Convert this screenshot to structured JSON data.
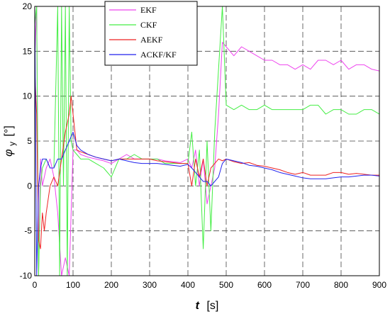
{
  "chart_data": {
    "type": "line",
    "title": "",
    "xlabel_main": "t",
    "xlabel_unit": "[s]",
    "ylabel_main": "φ",
    "ylabel_sub": "y",
    "ylabel_unit": "[°]",
    "xlim": [
      0,
      900
    ],
    "ylim": [
      -10,
      20
    ],
    "x_ticks": [
      0,
      100,
      200,
      300,
      400,
      500,
      600,
      700,
      800,
      900
    ],
    "y_ticks": [
      -10,
      -5,
      0,
      5,
      10,
      15,
      20
    ],
    "grid": true,
    "legend_position": "top-center",
    "series": [
      {
        "name": "EKF",
        "color": "#ee44ee",
        "x": [
          0,
          5,
          10,
          15,
          20,
          30,
          40,
          50,
          60,
          70,
          80,
          90,
          100,
          110,
          120,
          140,
          160,
          180,
          200,
          220,
          240,
          260,
          280,
          300,
          320,
          340,
          360,
          380,
          400,
          410,
          420,
          430,
          440,
          450,
          460,
          470,
          480,
          490,
          500,
          520,
          540,
          560,
          580,
          600,
          620,
          640,
          660,
          680,
          700,
          720,
          740,
          760,
          780,
          800,
          820,
          840,
          860,
          880,
          900
        ],
        "y": [
          14,
          20,
          -10,
          3,
          0,
          2,
          3,
          1,
          -3,
          -10,
          -8,
          -10,
          4,
          4,
          3.5,
          3.2,
          3,
          2.8,
          2.5,
          3,
          3.5,
          3,
          3,
          3,
          3,
          2.8,
          2.7,
          2.6,
          3,
          2,
          4,
          0,
          3,
          -2,
          0,
          2,
          8,
          16,
          15.5,
          14.5,
          15.5,
          15,
          14.5,
          14,
          14,
          13.5,
          13.5,
          13,
          13.5,
          13,
          14,
          14,
          13.5,
          14,
          13,
          13.5,
          13.5,
          13,
          12.8
        ]
      },
      {
        "name": "CKF",
        "color": "#44ee44",
        "x": [
          0,
          5,
          10,
          15,
          20,
          30,
          40,
          50,
          60,
          65,
          70,
          75,
          80,
          85,
          90,
          95,
          100,
          110,
          120,
          140,
          160,
          180,
          200,
          220,
          240,
          260,
          280,
          300,
          320,
          340,
          360,
          380,
          400,
          410,
          420,
          430,
          440,
          450,
          460,
          470,
          480,
          490,
          500,
          520,
          540,
          560,
          580,
          600,
          620,
          640,
          660,
          680,
          700,
          720,
          740,
          760,
          780,
          800,
          820,
          840,
          860,
          880,
          900
        ],
        "y": [
          18,
          20,
          -10,
          0,
          2,
          3,
          2,
          2,
          20,
          -10,
          20,
          0,
          20,
          -10,
          20,
          5,
          4,
          3.5,
          3,
          3,
          2.5,
          2,
          1,
          3,
          3,
          3.5,
          3,
          3,
          3,
          2.5,
          2.5,
          2.5,
          2.5,
          6,
          0,
          4,
          -7,
          5,
          -5,
          6,
          13,
          20,
          9,
          8.5,
          9,
          8.5,
          8.5,
          9,
          8.5,
          8.5,
          8.5,
          8.5,
          8.5,
          9,
          9,
          8,
          8.5,
          8.5,
          8,
          8,
          8.5,
          8.5,
          8
        ]
      },
      {
        "name": "AEKF",
        "color": "#ee2222",
        "x": [
          0,
          5,
          10,
          15,
          20,
          25,
          30,
          40,
          50,
          60,
          70,
          80,
          90,
          95,
          100,
          105,
          110,
          120,
          140,
          160,
          180,
          200,
          220,
          240,
          260,
          280,
          300,
          320,
          340,
          360,
          380,
          400,
          410,
          420,
          430,
          440,
          450,
          460,
          470,
          480,
          490,
          500,
          520,
          540,
          560,
          580,
          600,
          620,
          640,
          660,
          680,
          700,
          720,
          740,
          760,
          780,
          800,
          820,
          840,
          860,
          880,
          900
        ],
        "y": [
          13,
          8,
          -6,
          -7,
          -3,
          -5,
          -3,
          0,
          1,
          0,
          3,
          6,
          8,
          10,
          8,
          6,
          4,
          3.8,
          3.5,
          3.2,
          3,
          2.8,
          3,
          3,
          3,
          3,
          3,
          2.8,
          2.7,
          2.6,
          2.5,
          2.5,
          0,
          3,
          1,
          3,
          0,
          2,
          2.5,
          3,
          2.8,
          3,
          2.7,
          2.5,
          2.6,
          2.3,
          2.2,
          2,
          1.8,
          1.5,
          1.3,
          1.5,
          1.2,
          1.2,
          1.2,
          1.5,
          1.5,
          1.3,
          1.4,
          1.3,
          1.2,
          1.2
        ]
      },
      {
        "name": "ACKF/KF",
        "color": "#2222ee",
        "x": [
          0,
          5,
          10,
          15,
          20,
          30,
          40,
          50,
          60,
          70,
          80,
          90,
          100,
          110,
          120,
          140,
          160,
          180,
          200,
          220,
          240,
          260,
          280,
          300,
          320,
          340,
          360,
          380,
          400,
          410,
          420,
          430,
          440,
          450,
          460,
          470,
          480,
          490,
          500,
          520,
          540,
          560,
          580,
          600,
          620,
          640,
          660,
          680,
          700,
          720,
          740,
          760,
          780,
          800,
          820,
          840,
          860,
          880,
          900
        ],
        "y": [
          20,
          -10,
          0,
          2,
          3,
          3,
          2,
          2,
          3,
          3,
          4,
          5,
          6,
          4.5,
          4,
          3.5,
          3.2,
          3,
          2.8,
          3,
          2.8,
          2.6,
          2.5,
          2.5,
          2.5,
          2.4,
          2.3,
          2.2,
          2.4,
          2,
          1.5,
          1,
          0.5,
          0.5,
          0,
          0.5,
          1,
          2.5,
          3,
          2.8,
          2.6,
          2.3,
          2.2,
          2,
          1.8,
          1.5,
          1.3,
          1.1,
          0.9,
          0.8,
          0.8,
          0.8,
          0.9,
          1,
          1,
          1.1,
          1.2,
          1.2,
          1.1
        ]
      }
    ]
  }
}
